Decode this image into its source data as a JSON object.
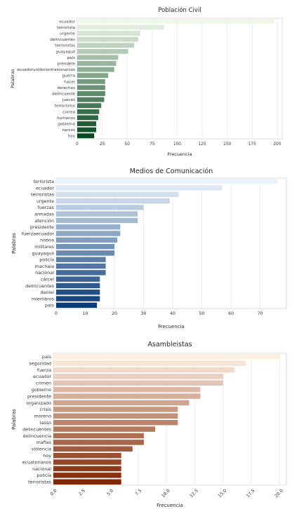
{
  "chart_data": [
    {
      "type": "bar",
      "orientation": "horizontal",
      "title": "Población Civil",
      "xlabel": "Frecuencia",
      "ylabel": "Palabras",
      "categories": [
        "ecuador",
        "terrorista",
        "urgente",
        "delincuentes",
        "terroristas",
        "guayaquil",
        "pais",
        "prendete",
        "ecuadorunidocontralosnarcos",
        "guerra",
        "hacer",
        "derechos",
        "delincuente",
        "jueces",
        "terrorismo",
        "correa",
        "humanos",
        "gobierno",
        "narcos",
        "hoy"
      ],
      "values": [
        197,
        87,
        63,
        61,
        57,
        51,
        41,
        39,
        37,
        31,
        28,
        28,
        28,
        27,
        24,
        22,
        21,
        19,
        19,
        17
      ],
      "xlim": [
        0,
        205
      ],
      "xticks": [
        0,
        25,
        50,
        75,
        100,
        125,
        150,
        175,
        200
      ],
      "xtick_labels": [
        "0",
        "25",
        "50",
        "75",
        "100",
        "125",
        "150",
        "175",
        "200"
      ],
      "colormap": "Greens",
      "colors": {
        "light": "#edf7ea",
        "dark": "#0a4a20"
      },
      "grid": "vertical"
    },
    {
      "type": "bar",
      "orientation": "horizontal",
      "title": "Medios de Comunicación",
      "xlabel": "Frecuencia",
      "ylabel": "Palabras",
      "categories": [
        "terrorista",
        "ecuador",
        "terroristas",
        "urgente",
        "fuerzas",
        "armadas",
        "atención",
        "presidente",
        "fuerzaecuador",
        "noboa",
        "militares",
        "guayaquil",
        "policía",
        "machala",
        "nacional",
        "cárcel",
        "delincuentes",
        "daniel",
        "miembros",
        "país"
      ],
      "values": [
        76,
        57,
        42,
        39,
        30,
        28,
        28,
        22,
        22,
        21,
        20,
        20,
        17,
        17,
        17,
        15,
        15,
        15,
        15,
        14
      ],
      "xlim": [
        0,
        79
      ],
      "xticks": [
        0,
        10,
        20,
        30,
        40,
        50,
        60,
        70
      ],
      "xtick_labels": [
        "0",
        "10",
        "20",
        "30",
        "40",
        "50",
        "60",
        "70"
      ],
      "colormap": "Blues",
      "colors": {
        "light": "#eaf2fb",
        "dark": "#0c3d78"
      },
      "grid": "vertical"
    },
    {
      "type": "bar",
      "orientation": "horizontal",
      "title": "Asambleistas",
      "xlabel": "Frecuencia",
      "ylabel": "Palabras",
      "categories": [
        "país",
        "seguridad",
        "fuerza",
        "ecuador",
        "crimen",
        "gobierno",
        "presidente",
        "organizado",
        "crisis",
        "moreno",
        "lasso",
        "delincuentes",
        "delincuencia",
        "mafias",
        "violencia",
        "hoy",
        "ecuatorianos",
        "nacional",
        "policía",
        "terroristas"
      ],
      "values": [
        20,
        17,
        16,
        15,
        15,
        13,
        13,
        12,
        11,
        11,
        11,
        9,
        8,
        8,
        7,
        6,
        6,
        6,
        6,
        6
      ],
      "xlim": [
        0,
        20.6
      ],
      "xticks": [
        0,
        2.5,
        5,
        7.5,
        10,
        12.5,
        15,
        17.5,
        20
      ],
      "xtick_labels": [
        "0.0",
        "2.5",
        "5.0",
        "7.5",
        "10.0",
        "12.5",
        "15.0",
        "17.5",
        "20.0"
      ],
      "tick_rotation": -45,
      "colormap": "Oranges",
      "colors": {
        "light": "#fdeee0",
        "dark": "#7f2704"
      },
      "grid": "vertical"
    }
  ]
}
